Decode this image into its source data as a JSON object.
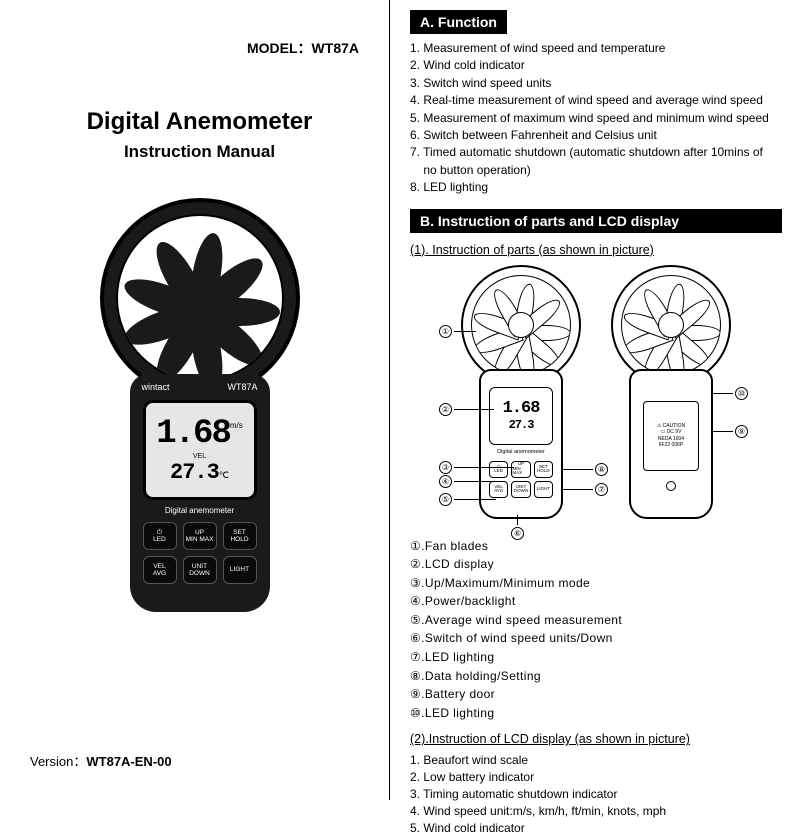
{
  "left": {
    "model_label": "MODEL：",
    "model_value": "WT87A",
    "title": "Digital Anemometer",
    "subtitle": "Instruction Manual",
    "version_label": "Version：",
    "version_value": "WT87A-EN-00"
  },
  "device": {
    "brand": "wintact",
    "model_small": "WT87A",
    "reading_main": "1.68",
    "reading_main_unit": "m/s",
    "reading_label": "VEL",
    "reading_sec": "27.3",
    "reading_sec_unit": "℃",
    "digital_label": "Digital anemometer",
    "buttons": [
      {
        "l1": "⏻",
        "l2": "LED"
      },
      {
        "l1": "UP",
        "l2": "MIN MAX"
      },
      {
        "l1": "SET",
        "l2": "HOLD"
      },
      {
        "l1": "VEL",
        "l2": "AVG"
      },
      {
        "l1": "UNIT",
        "l2": "DOWN"
      },
      {
        "l1": "LIGHT",
        "l2": ""
      }
    ]
  },
  "sectionA": {
    "header": "A. Function",
    "items": [
      "1. Measurement of wind speed and temperature",
      "2. Wind cold indicator",
      "3. Switch wind speed units",
      "4. Real-time measurement of wind speed and average wind speed",
      "5. Measurement of maximum wind speed and minimum wind speed",
      "6. Switch between Fahrenheit and Celsius unit",
      "7. Timed automatic shutdown (automatic shutdown after 10mins of",
      "    no button operation)",
      "8. LED lighting"
    ]
  },
  "sectionB": {
    "header": "B. Instruction of parts and LCD display",
    "sub1": "(1). Instruction of parts (as shown in picture)",
    "parts": [
      "①.Fan blades",
      "②.LCD display",
      "③.Up/Maximum/Minimum mode",
      "④.Power/backlight",
      "⑤.Average wind speed measurement",
      "⑥.Switch of wind speed units/Down",
      "⑦.LED lighting",
      "⑧.Data holding/Setting",
      "⑨.Battery door",
      "⑩.LED lighting"
    ],
    "sub2": "(2).Instruction of LCD display (as shown in picture)",
    "lcd": [
      "1. Beaufort wind scale",
      "2. Low battery indicator",
      "3. Timing automatic shutdown indicator",
      "4. Wind speed unit:m/s, km/h, ft/min, knots, mph",
      "5. Wind cold indicator"
    ]
  },
  "diagram": {
    "back_panel": {
      "caution": "⚠ CAUTION",
      "dc": "▭ DC 9V",
      "l1": "NEDA 1604",
      "l2": "6F22 006P"
    },
    "callouts_left": [
      "①",
      "②",
      "③",
      "④",
      "⑤"
    ],
    "callouts_bottom": "⑥",
    "callouts_right": [
      "⑩",
      "⑨",
      "⑧",
      "⑦"
    ]
  },
  "style": {
    "fan_blade_count": 9,
    "colors": {
      "black": "#000000",
      "dark": "#1a1a1a",
      "screen": "#e6e6e6",
      "white": "#ffffff"
    }
  }
}
